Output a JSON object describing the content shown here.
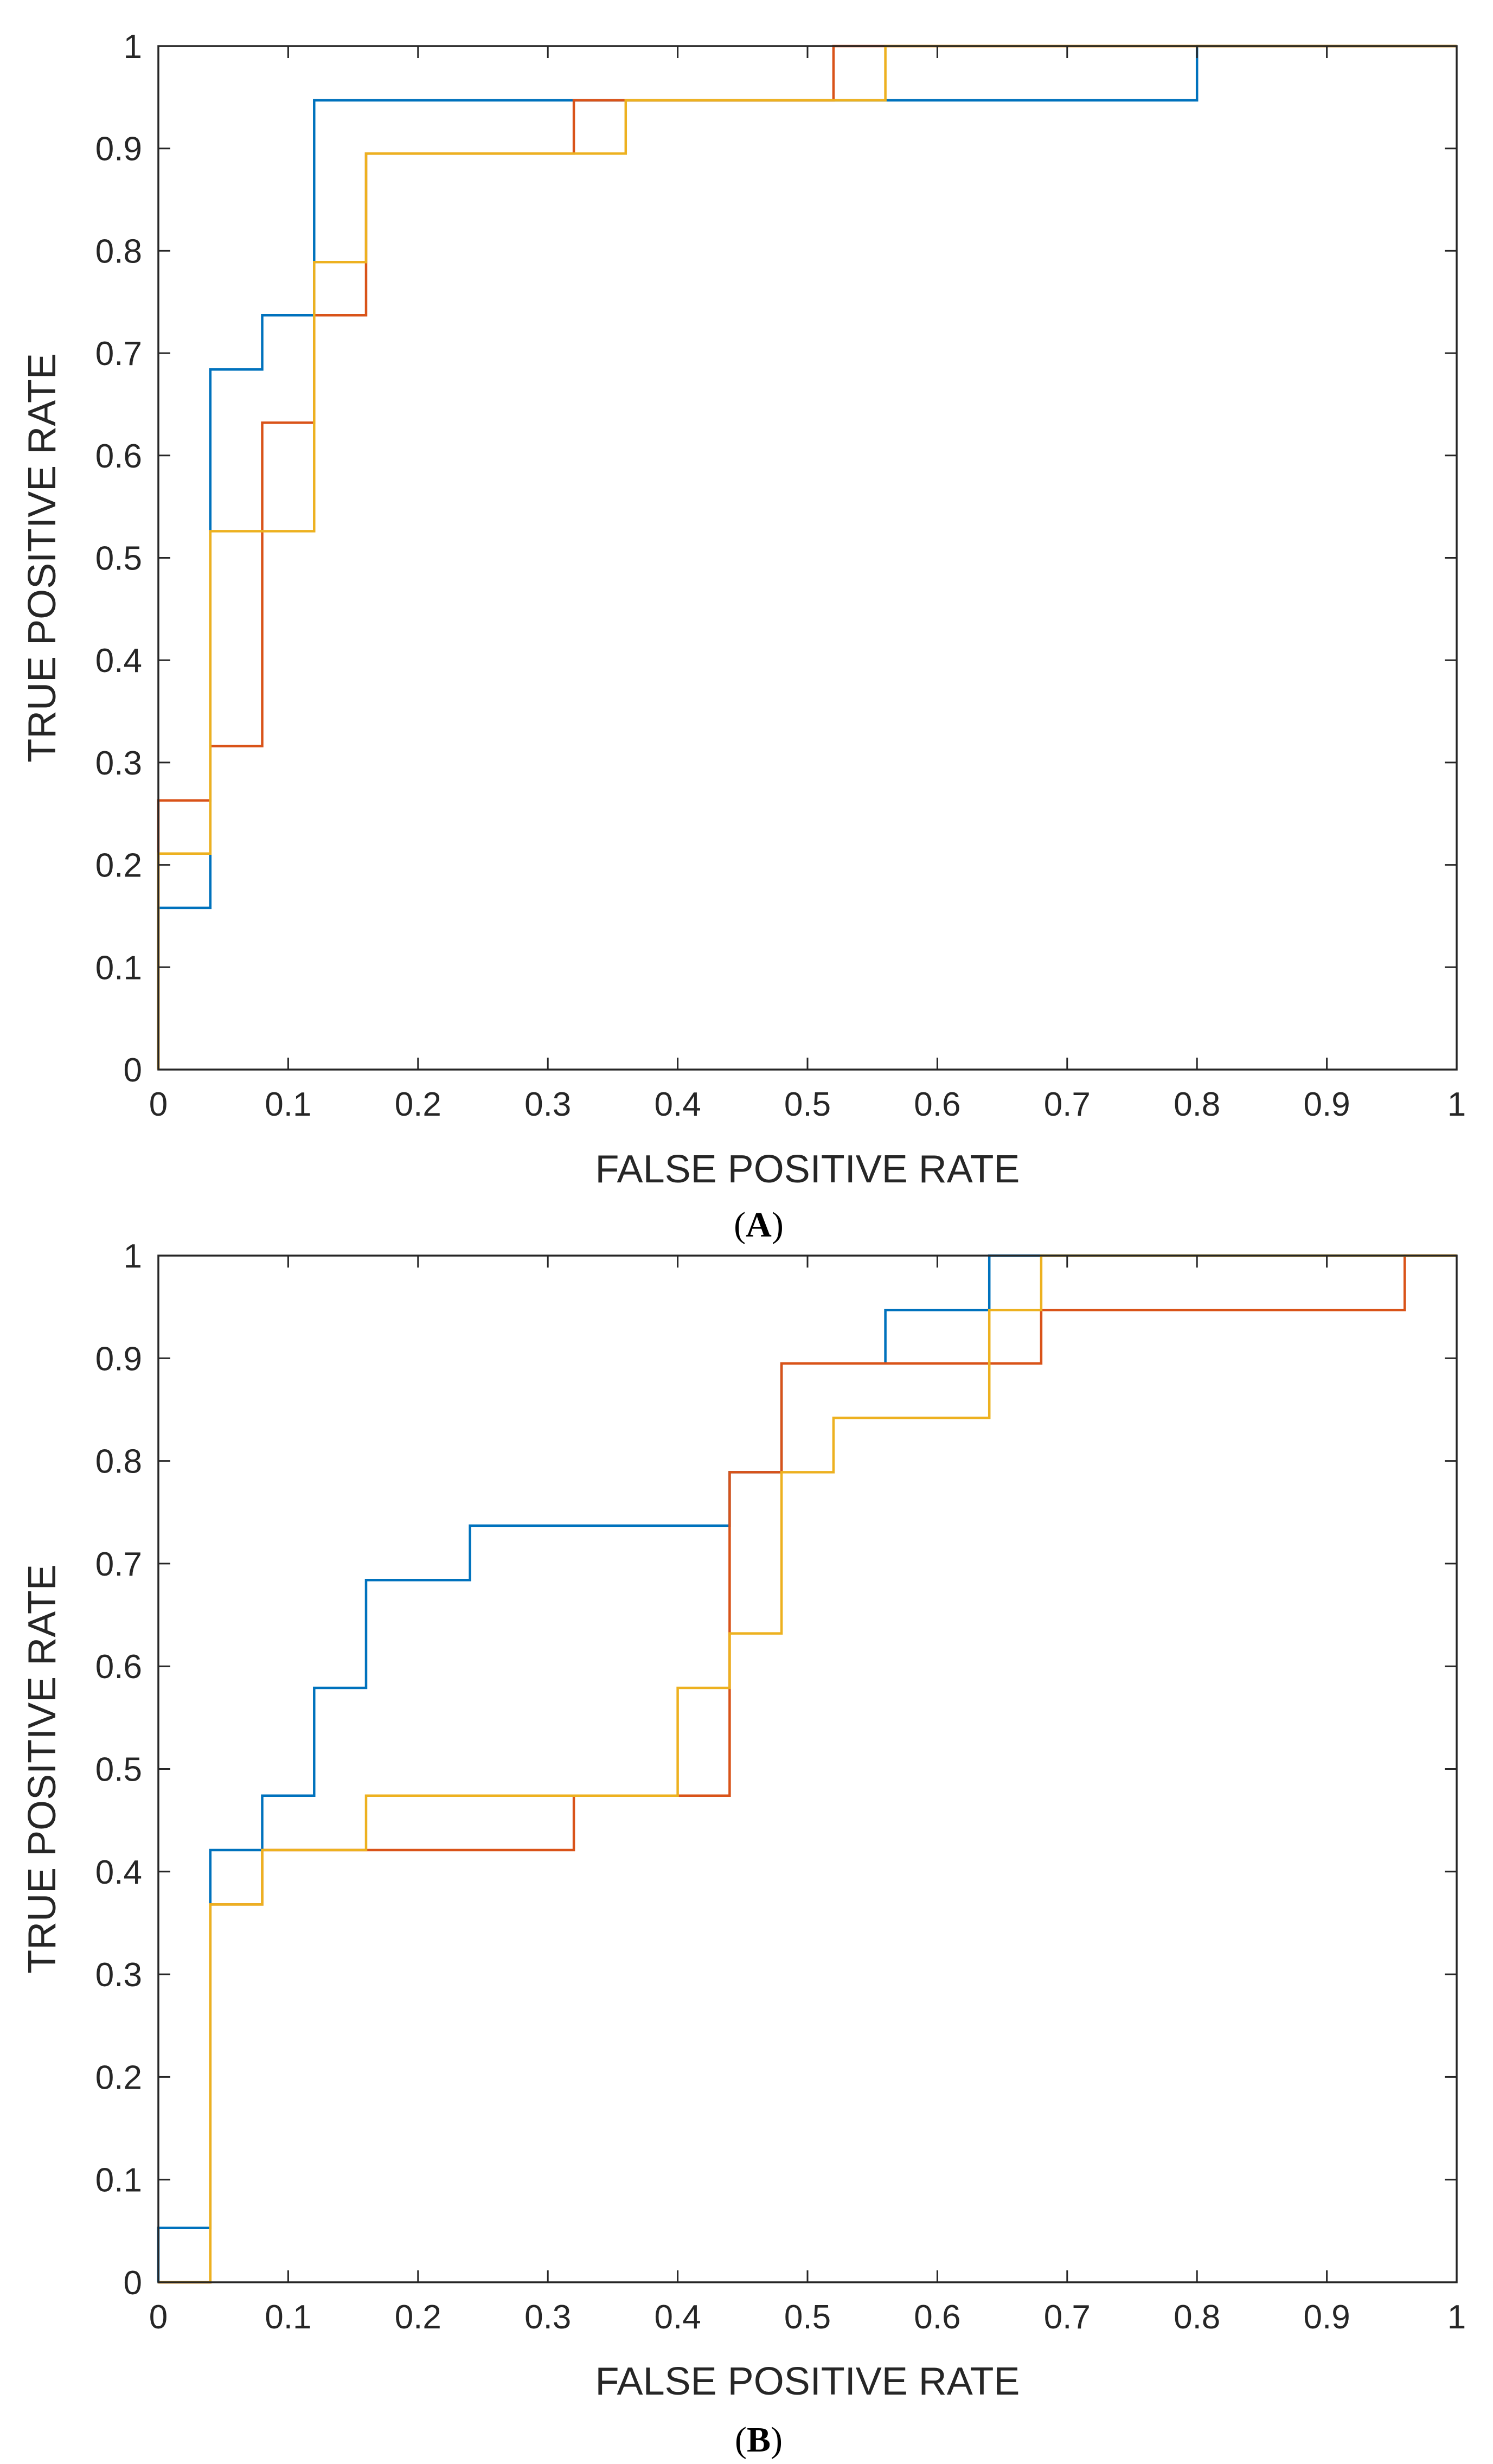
{
  "chart_data": [
    {
      "type": "line",
      "panel_label": "A",
      "xlabel": "FALSE POSITIVE RATE",
      "ylabel": "TRUE POSITIVE RATE",
      "xlim": [
        0,
        1
      ],
      "ylim": [
        0,
        1
      ],
      "x_ticks": [
        "0",
        "0.1",
        "0.2",
        "0.3",
        "0.4",
        "0.5",
        "0.6",
        "0.7",
        "0.8",
        "0.9",
        "1"
      ],
      "y_ticks": [
        "0",
        "0.1",
        "0.2",
        "0.3",
        "0.4",
        "0.5",
        "0.6",
        "0.7",
        "0.8",
        "0.9",
        "1"
      ],
      "grid": false,
      "legend": "none",
      "series": [
        {
          "color": "#0072BD",
          "points": [
            [
              0,
              0
            ],
            [
              0,
              0.158
            ],
            [
              0.04,
              0.158
            ],
            [
              0.04,
              0.684
            ],
            [
              0.08,
              0.684
            ],
            [
              0.08,
              0.737
            ],
            [
              0.12,
              0.737
            ],
            [
              0.12,
              0.947
            ],
            [
              0.8,
              0.947
            ],
            [
              0.8,
              1
            ],
            [
              1,
              1
            ]
          ]
        },
        {
          "color": "#D95319",
          "points": [
            [
              0,
              0
            ],
            [
              0,
              0.263
            ],
            [
              0.04,
              0.263
            ],
            [
              0.04,
              0.316
            ],
            [
              0.08,
              0.316
            ],
            [
              0.08,
              0.632
            ],
            [
              0.12,
              0.632
            ],
            [
              0.12,
              0.737
            ],
            [
              0.16,
              0.737
            ],
            [
              0.16,
              0.895
            ],
            [
              0.32,
              0.895
            ],
            [
              0.32,
              0.947
            ],
            [
              0.52,
              0.947
            ],
            [
              0.52,
              1
            ],
            [
              1,
              1
            ]
          ]
        },
        {
          "color": "#EDB120",
          "points": [
            [
              0,
              0
            ],
            [
              0,
              0.211
            ],
            [
              0.04,
              0.211
            ],
            [
              0.04,
              0.526
            ],
            [
              0.12,
              0.526
            ],
            [
              0.12,
              0.789
            ],
            [
              0.16,
              0.789
            ],
            [
              0.16,
              0.895
            ],
            [
              0.36,
              0.895
            ],
            [
              0.36,
              0.947
            ],
            [
              0.56,
              0.947
            ],
            [
              0.56,
              1
            ],
            [
              1,
              1
            ]
          ]
        }
      ]
    },
    {
      "type": "line",
      "panel_label": "B",
      "xlabel": "FALSE POSITIVE RATE",
      "ylabel": "TRUE POSITIVE RATE",
      "xlim": [
        0,
        1
      ],
      "ylim": [
        0,
        1
      ],
      "x_ticks": [
        "0",
        "0.1",
        "0.2",
        "0.3",
        "0.4",
        "0.5",
        "0.6",
        "0.7",
        "0.8",
        "0.9",
        "1"
      ],
      "y_ticks": [
        "0",
        "0.1",
        "0.2",
        "0.3",
        "0.4",
        "0.5",
        "0.6",
        "0.7",
        "0.8",
        "0.9",
        "1"
      ],
      "grid": false,
      "legend": "none",
      "series": [
        {
          "color": "#0072BD",
          "points": [
            [
              0,
              0
            ],
            [
              0,
              0.053
            ],
            [
              0.04,
              0.053
            ],
            [
              0.04,
              0.421
            ],
            [
              0.08,
              0.421
            ],
            [
              0.08,
              0.474
            ],
            [
              0.12,
              0.474
            ],
            [
              0.12,
              0.579
            ],
            [
              0.16,
              0.579
            ],
            [
              0.16,
              0.684
            ],
            [
              0.24,
              0.684
            ],
            [
              0.24,
              0.737
            ],
            [
              0.44,
              0.737
            ],
            [
              0.44,
              0.789
            ],
            [
              0.48,
              0.789
            ],
            [
              0.48,
              0.895
            ],
            [
              0.56,
              0.895
            ],
            [
              0.56,
              0.947
            ],
            [
              0.64,
              0.947
            ],
            [
              0.64,
              1
            ],
            [
              1,
              1
            ]
          ]
        },
        {
          "color": "#D95319",
          "points": [
            [
              0,
              0
            ],
            [
              0.04,
              0
            ],
            [
              0.04,
              0.368
            ],
            [
              0.08,
              0.368
            ],
            [
              0.08,
              0.421
            ],
            [
              0.32,
              0.421
            ],
            [
              0.32,
              0.474
            ],
            [
              0.44,
              0.474
            ],
            [
              0.44,
              0.789
            ],
            [
              0.48,
              0.789
            ],
            [
              0.48,
              0.895
            ],
            [
              0.68,
              0.895
            ],
            [
              0.68,
              0.947
            ],
            [
              0.96,
              0.947
            ],
            [
              0.96,
              1
            ],
            [
              1,
              1
            ]
          ]
        },
        {
          "color": "#EDB120",
          "points": [
            [
              0,
              0
            ],
            [
              0.04,
              0
            ],
            [
              0.04,
              0.368
            ],
            [
              0.08,
              0.368
            ],
            [
              0.08,
              0.421
            ],
            [
              0.16,
              0.421
            ],
            [
              0.16,
              0.474
            ],
            [
              0.4,
              0.474
            ],
            [
              0.4,
              0.579
            ],
            [
              0.44,
              0.579
            ],
            [
              0.44,
              0.632
            ],
            [
              0.48,
              0.632
            ],
            [
              0.48,
              0.789
            ],
            [
              0.52,
              0.789
            ],
            [
              0.52,
              0.842
            ],
            [
              0.64,
              0.842
            ],
            [
              0.64,
              0.947
            ],
            [
              0.68,
              0.947
            ],
            [
              0.68,
              1
            ],
            [
              1,
              1
            ]
          ]
        }
      ]
    }
  ]
}
